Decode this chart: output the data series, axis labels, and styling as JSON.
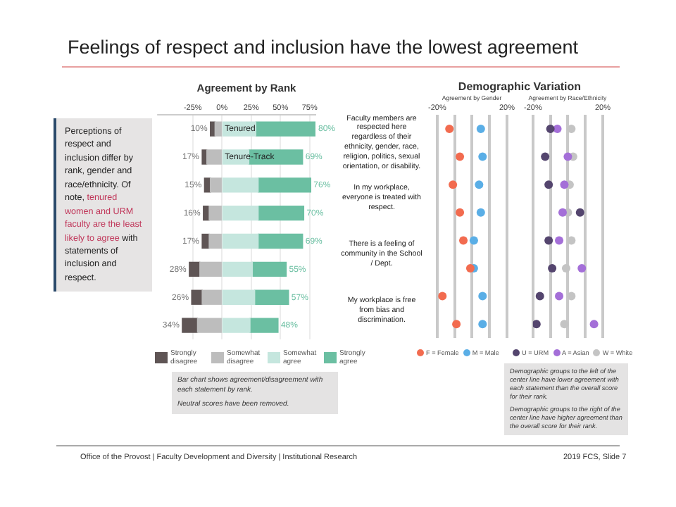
{
  "chart_data": [
    {
      "type": "other",
      "title": "Feelings of respect and inclusion have the lowest agreement",
      "annotations": [
        "Perceptions of respect and inclusion differ by rank, gender and race/ethnicity. Of note, ",
        "tenured women and URM faculty are the least likely to agree",
        " with statements of inclusion and respect.",
        "Office of the Provost | Faculty Development and Diversity | Institutional Research",
        "2019 FCS, Slide 7"
      ]
    },
    {
      "type": "bar",
      "title": "Agreement by Rank",
      "orientation": "horizontal",
      "stacked": true,
      "categories": [
        "Tenured",
        "Tenure-Track",
        null,
        null,
        null,
        null,
        null,
        null
      ],
      "xlim": [
        -55,
        80
      ],
      "xticks": [
        {
          "value": -25,
          "label": "-25%"
        },
        {
          "value": 0,
          "label": "0%"
        },
        {
          "value": 25,
          "label": "25%"
        },
        {
          "value": 50,
          "label": "50%"
        },
        {
          "value": 75,
          "label": "75%"
        }
      ],
      "grid": "x",
      "legend": "bottom",
      "series": [
        {
          "name": "Somewhat disagree",
          "color": "#bdbdbd",
          "values": [
            -6,
            -13,
            -10,
            -11,
            -11,
            -19,
            -17,
            -21
          ]
        },
        {
          "name": "Strongly disagree",
          "color": "#5f5555",
          "values": [
            -4,
            -4,
            -5,
            -5,
            -6,
            -9,
            -9,
            -13
          ]
        },
        {
          "name": "Somewhat agree",
          "color": "#c5e6de",
          "values": [
            29,
            23,
            31,
            31,
            31,
            26,
            28,
            24
          ]
        },
        {
          "name": "Strongly agree",
          "color": "#6bbfa2",
          "values": [
            51,
            46,
            45,
            39,
            38,
            29,
            29,
            24
          ]
        }
      ],
      "totals": [
        [
          "10%",
          "80%"
        ],
        [
          "17%",
          "69%"
        ],
        [
          "15%",
          "76%"
        ],
        [
          "16%",
          "70%"
        ],
        [
          "17%",
          "69%"
        ],
        [
          "28%",
          "55%"
        ],
        [
          "26%",
          "57%"
        ],
        [
          "34%",
          "48%"
        ]
      ],
      "annotations": [
        "Faculty members are respected here regardless of their ethnicity, gender, race, religion, politics, sexual orientation, or disability.",
        "In my workplace, everyone is treated with respect.",
        "There is a feeling of community in the School / Dept.",
        "My workplace is free from bias and discrimination.",
        "Bar chart shows agreement/disagreement with each statement by rank.",
        "Neutral scores have been removed."
      ]
    },
    {
      "type": "scatter",
      "title": "Demographic Variation",
      "xlabel": "Agreement by Gender",
      "orientation": "horizontal",
      "categories": [
        null,
        null,
        null,
        null,
        null,
        null,
        null,
        null
      ],
      "xlim": [
        -20,
        20
      ],
      "xticks": [
        {
          "value": -20,
          "label": "-20%"
        },
        {
          "value": -10,
          "label": null
        },
        {
          "value": 0,
          "label": null
        },
        {
          "value": 10,
          "label": null
        },
        {
          "value": 20,
          "label": "20%"
        }
      ],
      "grid": "x",
      "legend": "bottom",
      "marker": "circle",
      "series": [
        {
          "name": "F = Female",
          "color": "#f26b4f",
          "values": [
            -13,
            -7,
            -11,
            -7,
            -5,
            -1,
            -17,
            -9
          ]
        },
        {
          "name": "M = Male",
          "color": "#5aaee6",
          "values": [
            5,
            6,
            4,
            5,
            1,
            1,
            6,
            6
          ]
        }
      ],
      "annotations": [
        "Demographic groups to the left of the center line have lower agreement with each statement than the overall score for their rank.",
        "Demographic groups to the right of the center line have higher agreement than the overall score for their rank."
      ]
    },
    {
      "type": "scatter",
      "xlabel": "Agreement by Race/Ethnicity",
      "orientation": "horizontal",
      "categories": [
        null,
        null,
        null,
        null,
        null,
        null,
        null,
        null
      ],
      "xlim": [
        -20,
        20
      ],
      "xticks": [
        {
          "value": -20,
          "label": "-20%"
        },
        {
          "value": -10,
          "label": null
        },
        {
          "value": 0,
          "label": null
        },
        {
          "value": 10,
          "label": null
        },
        {
          "value": 20,
          "label": "20%"
        }
      ],
      "grid": "x",
      "legend": "bottom",
      "marker": "circle",
      "series": [
        {
          "name": "U = URM",
          "color": "#54456e",
          "values": [
            -10,
            -13,
            -11,
            7,
            -11,
            -9,
            -16,
            -18
          ]
        },
        {
          "name": "A = Asian",
          "color": "#a46fd8",
          "values": [
            -6,
            0,
            -2,
            -3,
            -5,
            8,
            -5,
            15
          ]
        },
        {
          "name": "W = White",
          "color": "#c4c4c4",
          "values": [
            2,
            3,
            1,
            0,
            2,
            -1,
            2,
            -2
          ]
        }
      ]
    }
  ]
}
